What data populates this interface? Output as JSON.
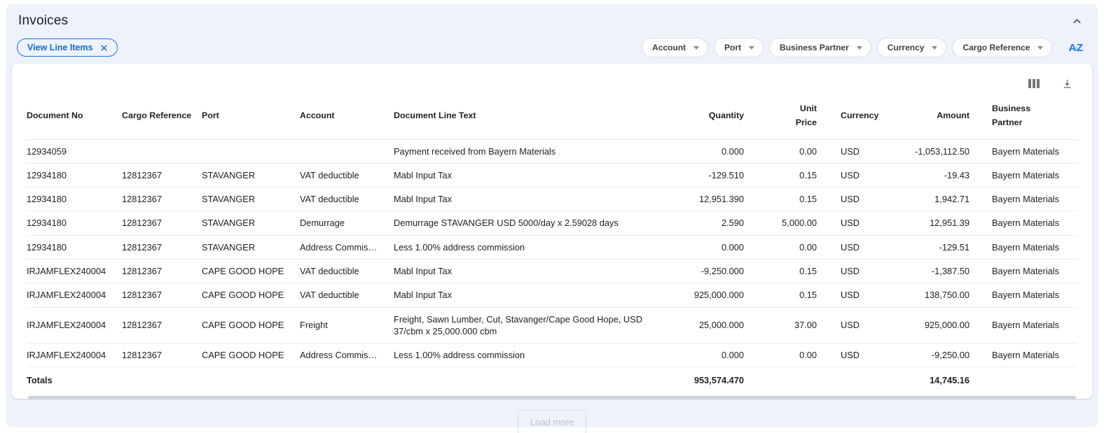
{
  "panel": {
    "title": "Invoices"
  },
  "active_chip": {
    "label": "View Line Items"
  },
  "filter_chips": [
    {
      "label": "Account"
    },
    {
      "label": "Port"
    },
    {
      "label": "Business Partner"
    },
    {
      "label": "Currency"
    },
    {
      "label": "Cargo Reference"
    }
  ],
  "sort_icon": {
    "a": "A",
    "z": "Z"
  },
  "table": {
    "columns": [
      {
        "key": "document_no",
        "label": "Document No",
        "align": "left"
      },
      {
        "key": "cargo_reference",
        "label": "Cargo Reference",
        "align": "left"
      },
      {
        "key": "port",
        "label": "Port",
        "align": "left"
      },
      {
        "key": "account",
        "label": "Account",
        "align": "left"
      },
      {
        "key": "document_line_text",
        "label": "Document Line Text",
        "align": "left"
      },
      {
        "key": "quantity",
        "label": "Quantity",
        "align": "right"
      },
      {
        "key": "unit_price",
        "label": "Unit Price",
        "align": "right"
      },
      {
        "key": "currency",
        "label": "Currency",
        "align": "left"
      },
      {
        "key": "amount",
        "label": "Amount",
        "align": "right"
      },
      {
        "key": "business_partner",
        "label": "Business Partner",
        "align": "left"
      }
    ],
    "rows": [
      {
        "document_no": "12934059",
        "cargo_reference": "",
        "port": "",
        "account": "",
        "document_line_text": "Payment received from Bayern Materials",
        "quantity": "0.000",
        "unit_price": "0.00",
        "currency": "USD",
        "amount": "-1,053,112.50",
        "business_partner": "Bayern Materials"
      },
      {
        "document_no": "12934180",
        "cargo_reference": "12812367",
        "port": "STAVANGER",
        "account": "VAT deductible",
        "document_line_text": "Mabl Input Tax",
        "quantity": "-129.510",
        "unit_price": "0.15",
        "currency": "USD",
        "amount": "-19.43",
        "business_partner": "Bayern Materials"
      },
      {
        "document_no": "12934180",
        "cargo_reference": "12812367",
        "port": "STAVANGER",
        "account": "VAT deductible",
        "document_line_text": "Mabl Input Tax",
        "quantity": "12,951.390",
        "unit_price": "0.15",
        "currency": "USD",
        "amount": "1,942.71",
        "business_partner": "Bayern Materials"
      },
      {
        "document_no": "12934180",
        "cargo_reference": "12812367",
        "port": "STAVANGER",
        "account": "Demurrage",
        "document_line_text": "Demurrage STAVANGER USD 5000/day x 2.59028 days",
        "quantity": "2.590",
        "unit_price": "5,000.00",
        "currency": "USD",
        "amount": "12,951.39",
        "business_partner": "Bayern Materials"
      },
      {
        "document_no": "12934180",
        "cargo_reference": "12812367",
        "port": "STAVANGER",
        "account": "Address Commis…",
        "document_line_text": "Less 1.00% address commission",
        "quantity": "0.000",
        "unit_price": "0.00",
        "currency": "USD",
        "amount": "-129.51",
        "business_partner": "Bayern Materials"
      },
      {
        "document_no": "IRJAMFLEX240004",
        "cargo_reference": "12812367",
        "port": "CAPE GOOD HOPE",
        "account": "VAT deductible",
        "document_line_text": "Mabl Input Tax",
        "quantity": "-9,250.000",
        "unit_price": "0.15",
        "currency": "USD",
        "amount": "-1,387.50",
        "business_partner": "Bayern Materials"
      },
      {
        "document_no": "IRJAMFLEX240004",
        "cargo_reference": "12812367",
        "port": "CAPE GOOD HOPE",
        "account": "VAT deductible",
        "document_line_text": "Mabl Input Tax",
        "quantity": "925,000.000",
        "unit_price": "0.15",
        "currency": "USD",
        "amount": "138,750.00",
        "business_partner": "Bayern Materials"
      },
      {
        "document_no": "IRJAMFLEX240004",
        "cargo_reference": "12812367",
        "port": "CAPE GOOD HOPE",
        "account": "Freight",
        "document_line_text": "Freight, Sawn Lumber, Cut, Stavanger/Cape Good Hope, USD 37/cbm x 25,000.000 cbm",
        "quantity": "25,000.000",
        "unit_price": "37.00",
        "currency": "USD",
        "amount": "925,000.00",
        "business_partner": "Bayern Materials"
      },
      {
        "document_no": "IRJAMFLEX240004",
        "cargo_reference": "12812367",
        "port": "CAPE GOOD HOPE",
        "account": "Address Commis…",
        "document_line_text": "Less 1.00% address commission",
        "quantity": "0.000",
        "unit_price": "0.00",
        "currency": "USD",
        "amount": "-9,250.00",
        "business_partner": "Bayern Materials"
      }
    ],
    "totals": {
      "document_no": "Totals",
      "quantity": "953,574.470",
      "amount": "14,745.16"
    }
  },
  "footer": {
    "load_more": "Load more"
  },
  "colors": {
    "accent": "#1a73e8",
    "accent_text": "#1967d2",
    "panel_bg": "#edf2fb",
    "chip_border": "#dadce0",
    "text": "#202124",
    "muted_icon": "#757575",
    "row_border": "#e9eaee",
    "disabled_text": "#bdc3cc"
  }
}
